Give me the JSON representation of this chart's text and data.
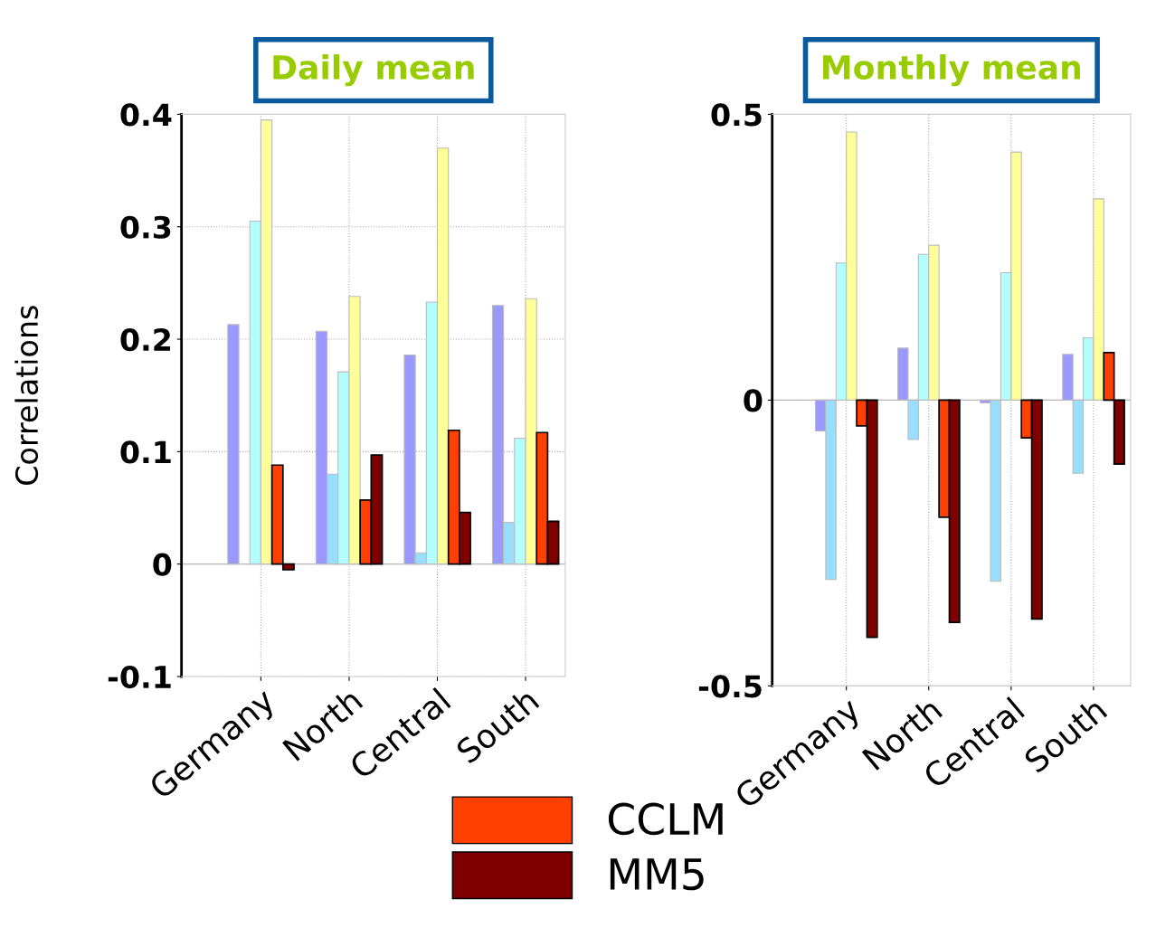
{
  "chart_data": [
    {
      "type": "bar",
      "title": "Daily mean",
      "ylabel": "Correlations",
      "categories": [
        "Germany",
        "North",
        "Central",
        "South"
      ],
      "ylim": [
        -0.1,
        0.4
      ],
      "yticks": [
        -0.1,
        0,
        0.1,
        0.2,
        0.3,
        0.4
      ],
      "grid": true,
      "legend": "bottom",
      "series": [
        {
          "color": "#9999ff",
          "values": [
            0.213,
            0.207,
            0.186,
            0.23
          ]
        },
        {
          "color": "#99ddff",
          "values": [
            null,
            0.08,
            0.01,
            0.037
          ]
        },
        {
          "color": "#b3ffff",
          "values": [
            0.305,
            0.171,
            0.233,
            0.112
          ]
        },
        {
          "color": "#ffff99",
          "values": [
            0.395,
            0.238,
            0.37,
            0.236
          ]
        },
        {
          "name": "CCLM",
          "color": "#ff4000",
          "values": [
            0.088,
            0.057,
            0.119,
            0.117
          ]
        },
        {
          "name": "MM5",
          "color": "#7f0000",
          "values": [
            -0.005,
            0.097,
            0.046,
            0.038
          ]
        }
      ]
    },
    {
      "type": "bar",
      "title": "Monthly mean",
      "categories": [
        "Germany",
        "North",
        "Central",
        "South"
      ],
      "ylim": [
        -0.5,
        0.5
      ],
      "yticks": [
        -0.5,
        0,
        0.5
      ],
      "grid": true,
      "legend": "bottom",
      "series": [
        {
          "color": "#9999ff",
          "values": [
            -0.054,
            0.091,
            -0.005,
            0.08
          ]
        },
        {
          "color": "#99ddff",
          "values": [
            -0.314,
            -0.069,
            -0.317,
            -0.128
          ]
        },
        {
          "color": "#b3ffff",
          "values": [
            0.24,
            0.255,
            0.223,
            0.109
          ]
        },
        {
          "color": "#ffff99",
          "values": [
            0.469,
            0.271,
            0.434,
            0.352
          ]
        },
        {
          "name": "CCLM",
          "color": "#ff4000",
          "values": [
            -0.045,
            -0.205,
            -0.066,
            0.083
          ]
        },
        {
          "name": "MM5",
          "color": "#7f0000",
          "values": [
            -0.415,
            -0.389,
            -0.383,
            -0.112
          ]
        }
      ]
    }
  ]
}
